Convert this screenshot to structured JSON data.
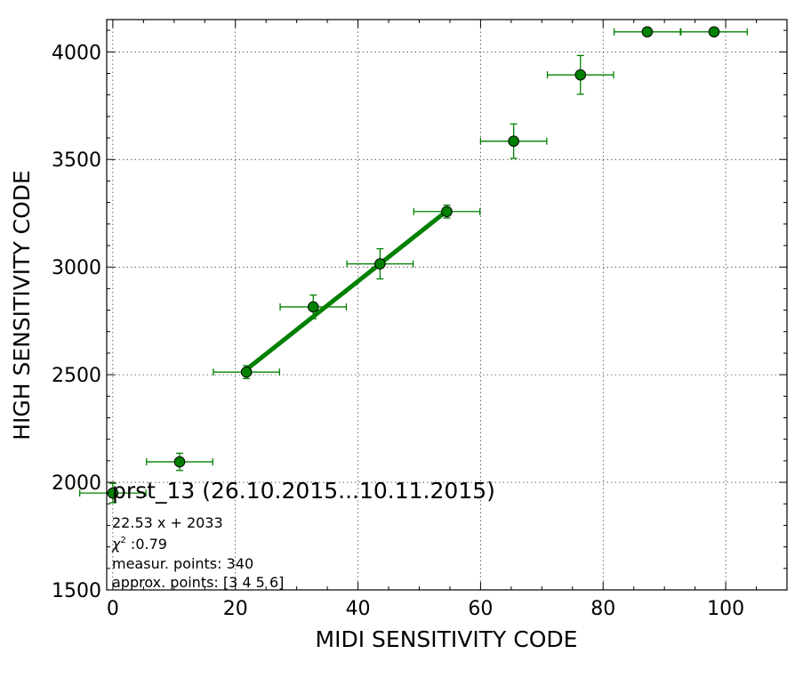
{
  "chart_data": {
    "type": "scatter",
    "xlabel": "MIDI SENSITIVITY CODE",
    "ylabel": "HIGH SENSITIVITY CODE",
    "xlim": [
      -1,
      110
    ],
    "ylim": [
      1500,
      4150
    ],
    "xticks": [
      0,
      20,
      40,
      60,
      80,
      100
    ],
    "yticks": [
      1500,
      2000,
      2500,
      3000,
      3500,
      4000
    ],
    "grid": true,
    "colors": {
      "series": "#008000",
      "marker_fill": "#008000",
      "marker_edge": "#000000"
    },
    "points": [
      {
        "x": 0.0,
        "y": 1950,
        "xerr": 5.4,
        "yerr": 45
      },
      {
        "x": 10.9,
        "y": 2095,
        "xerr": 5.4,
        "yerr": 40
      },
      {
        "x": 21.8,
        "y": 2512,
        "xerr": 5.4,
        "yerr": 30
      },
      {
        "x": 32.7,
        "y": 2815,
        "xerr": 5.4,
        "yerr": 55
      },
      {
        "x": 43.6,
        "y": 3015,
        "xerr": 5.4,
        "yerr": 70
      },
      {
        "x": 54.5,
        "y": 3258,
        "xerr": 5.4,
        "yerr": 30
      },
      {
        "x": 65.4,
        "y": 3585,
        "xerr": 5.4,
        "yerr": 80
      },
      {
        "x": 76.3,
        "y": 3893,
        "xerr": 5.4,
        "yerr": 90
      },
      {
        "x": 87.2,
        "y": 4093,
        "xerr": 5.4,
        "yerr": 0
      },
      {
        "x": 98.1,
        "y": 4093,
        "xerr": 5.4,
        "yerr": 0
      }
    ],
    "fit": {
      "slope": 22.53,
      "intercept": 2033,
      "x_range": [
        21.8,
        54.5
      ]
    },
    "annotation": {
      "title": "prst_13 (26.10.2015...10.11.2015)",
      "equation": "22.53 x + 2033",
      "chi2_symbol": "χ",
      "chi2_sup": "2",
      "chi2_value": " :0.79",
      "measur_points": "measur. points: 340",
      "approx_points": "approx. points: [3 4 5 6]"
    }
  }
}
